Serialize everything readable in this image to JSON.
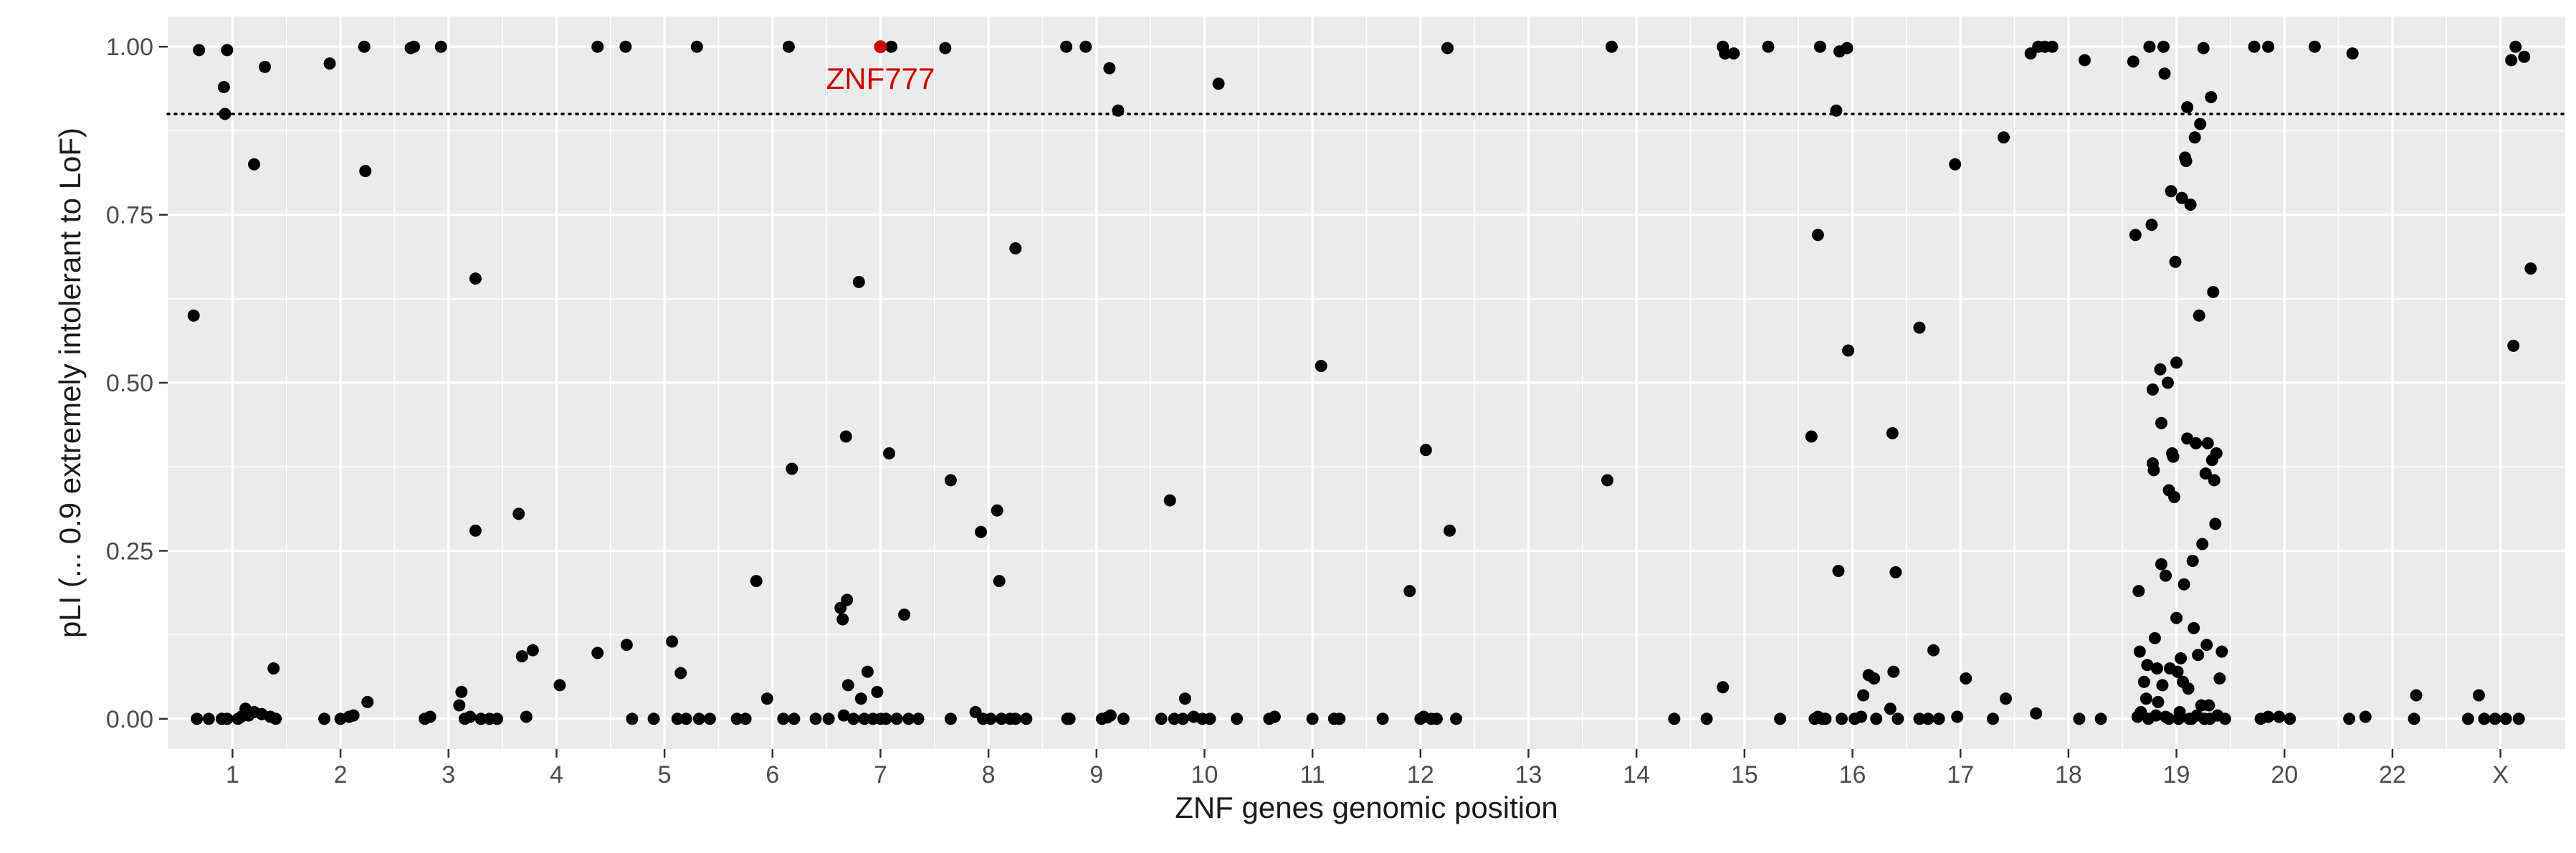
{
  "chart_data": {
    "type": "scatter",
    "title": "",
    "xlabel": "ZNF genes genomic position",
    "ylabel": "pLI (... 0.9 extremely intolerant to LoF)",
    "x_categories": [
      "1",
      "2",
      "3",
      "4",
      "5",
      "6",
      "7",
      "8",
      "9",
      "10",
      "11",
      "12",
      "13",
      "14",
      "15",
      "16",
      "17",
      "18",
      "19",
      "20",
      "22",
      "X"
    ],
    "yticks": [
      "0.00",
      "0.25",
      "0.50",
      "0.75",
      "1.00"
    ],
    "ylim": [
      -0.045,
      1.045
    ],
    "threshold": 0.9,
    "grid": true,
    "colors": {
      "panel": "#ebebeb",
      "grid": "#ffffff",
      "point": "#000000",
      "highlight": "#cc0000",
      "text": "#1a1a1a",
      "tick": "#333333"
    },
    "highlight": {
      "label": "ZNF777",
      "x": 7.0,
      "y": 1.0
    },
    "points": [
      [
        0.64,
        0.6
      ],
      [
        0.67,
        0.0
      ],
      [
        0.69,
        0.995
      ],
      [
        0.78,
        0.0
      ],
      [
        0.9,
        0.0
      ],
      [
        0.92,
        0.94
      ],
      [
        0.93,
        0.9
      ],
      [
        0.95,
        0.995
      ],
      [
        0.95,
        0.0
      ],
      [
        1.05,
        0.0
      ],
      [
        1.08,
        0.003
      ],
      [
        1.12,
        0.015
      ],
      [
        1.15,
        0.005
      ],
      [
        1.2,
        0.825
      ],
      [
        1.2,
        0.01
      ],
      [
        1.27,
        0.007
      ],
      [
        1.3,
        0.97
      ],
      [
        1.35,
        0.003
      ],
      [
        1.38,
        0.075
      ],
      [
        1.4,
        0.0
      ],
      [
        1.85,
        0.0
      ],
      [
        1.9,
        0.975
      ],
      [
        2.0,
        0.0
      ],
      [
        2.08,
        0.003
      ],
      [
        2.12,
        0.005
      ],
      [
        2.22,
        1.0
      ],
      [
        2.23,
        0.815
      ],
      [
        2.25,
        0.025
      ],
      [
        2.65,
        0.998
      ],
      [
        2.68,
        1.0
      ],
      [
        2.78,
        0.0
      ],
      [
        2.83,
        0.003
      ],
      [
        2.93,
        1.0
      ],
      [
        3.1,
        0.02
      ],
      [
        3.12,
        0.04
      ],
      [
        3.15,
        0.0
      ],
      [
        3.2,
        0.003
      ],
      [
        3.25,
        0.655
      ],
      [
        3.25,
        0.28
      ],
      [
        3.3,
        0.0
      ],
      [
        3.38,
        0.0
      ],
      [
        3.45,
        0.0
      ],
      [
        3.65,
        0.305
      ],
      [
        3.68,
        0.093
      ],
      [
        3.72,
        0.003
      ],
      [
        3.78,
        0.102
      ],
      [
        4.03,
        0.05
      ],
      [
        4.38,
        1.0
      ],
      [
        4.38,
        0.098
      ],
      [
        4.64,
        1.0
      ],
      [
        4.65,
        0.11
      ],
      [
        4.7,
        0.0
      ],
      [
        4.9,
        0.0
      ],
      [
        5.07,
        0.115
      ],
      [
        5.12,
        0.0
      ],
      [
        5.15,
        0.068
      ],
      [
        5.2,
        0.0
      ],
      [
        5.3,
        1.0
      ],
      [
        5.32,
        0.0
      ],
      [
        5.42,
        0.0
      ],
      [
        5.67,
        0.0
      ],
      [
        5.75,
        0.0
      ],
      [
        5.85,
        0.205
      ],
      [
        5.95,
        0.03
      ],
      [
        6.1,
        0.0
      ],
      [
        6.15,
        1.0
      ],
      [
        6.18,
        0.372
      ],
      [
        6.2,
        0.0
      ],
      [
        6.4,
        0.0
      ],
      [
        6.52,
        0.0
      ],
      [
        6.63,
        0.165
      ],
      [
        6.65,
        0.148
      ],
      [
        6.66,
        0.005
      ],
      [
        6.68,
        0.42
      ],
      [
        6.69,
        0.177
      ],
      [
        6.7,
        0.05
      ],
      [
        6.75,
        0.0
      ],
      [
        6.8,
        0.65
      ],
      [
        6.82,
        0.03
      ],
      [
        6.85,
        0.0
      ],
      [
        6.88,
        0.07
      ],
      [
        6.93,
        0.0
      ],
      [
        6.97,
        0.04
      ],
      [
        7.0,
        0.0
      ],
      [
        7.05,
        0.0
      ],
      [
        7.08,
        0.395
      ],
      [
        7.1,
        1.0
      ],
      [
        7.15,
        0.0
      ],
      [
        7.22,
        0.155
      ],
      [
        7.26,
        0.0
      ],
      [
        7.35,
        0.0
      ],
      [
        7.6,
        0.998
      ],
      [
        7.65,
        0.355
      ],
      [
        7.65,
        0.0
      ],
      [
        7.88,
        0.01
      ],
      [
        7.93,
        0.278
      ],
      [
        7.95,
        0.0
      ],
      [
        8.02,
        0.0
      ],
      [
        8.08,
        0.31
      ],
      [
        8.1,
        0.205
      ],
      [
        8.12,
        0.0
      ],
      [
        8.2,
        0.0
      ],
      [
        8.25,
        0.7
      ],
      [
        8.25,
        0.0
      ],
      [
        8.35,
        0.0
      ],
      [
        8.72,
        1.0
      ],
      [
        8.73,
        0.0
      ],
      [
        8.75,
        0.0
      ],
      [
        8.9,
        1.0
      ],
      [
        9.05,
        0.0
      ],
      [
        9.1,
        0.002
      ],
      [
        9.12,
        0.968
      ],
      [
        9.13,
        0.005
      ],
      [
        9.2,
        0.905
      ],
      [
        9.25,
        0.0
      ],
      [
        9.6,
        0.0
      ],
      [
        9.68,
        0.325
      ],
      [
        9.72,
        0.0
      ],
      [
        9.8,
        0.0
      ],
      [
        9.82,
        0.03
      ],
      [
        9.9,
        0.003
      ],
      [
        9.98,
        0.0
      ],
      [
        10.05,
        0.0
      ],
      [
        10.13,
        0.945
      ],
      [
        10.3,
        0.0
      ],
      [
        10.6,
        0.0
      ],
      [
        10.65,
        0.003
      ],
      [
        11.0,
        0.0
      ],
      [
        11.08,
        0.525
      ],
      [
        11.2,
        0.0
      ],
      [
        11.25,
        0.0
      ],
      [
        11.65,
        0.0
      ],
      [
        11.9,
        0.19
      ],
      [
        12.0,
        0.0
      ],
      [
        12.03,
        0.003
      ],
      [
        12.05,
        0.4
      ],
      [
        12.1,
        0.0
      ],
      [
        12.15,
        0.0
      ],
      [
        12.25,
        0.998
      ],
      [
        12.27,
        0.28
      ],
      [
        12.33,
        0.0
      ],
      [
        13.73,
        0.355
      ],
      [
        13.77,
        1.0
      ],
      [
        14.35,
        0.0
      ],
      [
        14.65,
        0.0
      ],
      [
        14.8,
        0.047
      ],
      [
        14.8,
        1.0
      ],
      [
        14.82,
        0.99
      ],
      [
        14.9,
        0.99
      ],
      [
        15.22,
        1.0
      ],
      [
        15.33,
        0.0
      ],
      [
        15.62,
        0.42
      ],
      [
        15.65,
        0.0
      ],
      [
        15.68,
        0.72
      ],
      [
        15.68,
        0.003
      ],
      [
        15.7,
        1.0
      ],
      [
        15.72,
        0.0
      ],
      [
        15.75,
        0.0
      ],
      [
        15.85,
        0.905
      ],
      [
        15.87,
        0.22
      ],
      [
        15.88,
        0.993
      ],
      [
        15.9,
        0.0
      ],
      [
        15.95,
        0.998
      ],
      [
        15.96,
        0.548
      ],
      [
        16.02,
        0.0
      ],
      [
        16.08,
        0.003
      ],
      [
        16.1,
        0.035
      ],
      [
        16.15,
        0.065
      ],
      [
        16.2,
        0.06
      ],
      [
        16.22,
        0.0
      ],
      [
        16.35,
        0.015
      ],
      [
        16.37,
        0.425
      ],
      [
        16.38,
        0.07
      ],
      [
        16.4,
        0.218
      ],
      [
        16.42,
        0.0
      ],
      [
        16.62,
        0.582
      ],
      [
        16.62,
        0.0
      ],
      [
        16.7,
        0.0
      ],
      [
        16.75,
        0.102
      ],
      [
        16.8,
        0.0
      ],
      [
        16.95,
        0.825
      ],
      [
        16.97,
        0.003
      ],
      [
        17.05,
        0.06
      ],
      [
        17.3,
        0.0
      ],
      [
        17.4,
        0.865
      ],
      [
        17.42,
        0.03
      ],
      [
        17.65,
        0.99
      ],
      [
        17.7,
        0.008
      ],
      [
        17.72,
        1.0
      ],
      [
        17.78,
        1.0
      ],
      [
        17.85,
        1.0
      ],
      [
        18.1,
        0.0
      ],
      [
        18.15,
        0.98
      ],
      [
        18.3,
        0.0
      ],
      [
        18.6,
        0.978
      ],
      [
        18.62,
        0.72
      ],
      [
        18.64,
        0.003
      ],
      [
        18.65,
        0.19
      ],
      [
        18.66,
        0.1
      ],
      [
        18.67,
        0.01
      ],
      [
        18.7,
        0.055
      ],
      [
        18.72,
        0.03
      ],
      [
        18.73,
        0.08
      ],
      [
        18.74,
        0.0
      ],
      [
        18.75,
        1.0
      ],
      [
        18.77,
        0.735
      ],
      [
        18.78,
        0.49
      ],
      [
        18.78,
        0.38
      ],
      [
        18.79,
        0.37
      ],
      [
        18.8,
        0.12
      ],
      [
        18.81,
        0.005
      ],
      [
        18.82,
        0.075
      ],
      [
        18.83,
        0.025
      ],
      [
        18.85,
        0.52
      ],
      [
        18.86,
        0.44
      ],
      [
        18.86,
        0.23
      ],
      [
        18.87,
        0.05
      ],
      [
        18.88,
        1.0
      ],
      [
        18.89,
        0.96
      ],
      [
        18.9,
        0.213
      ],
      [
        18.9,
        0.003
      ],
      [
        18.92,
        0.5
      ],
      [
        18.93,
        0.0
      ],
      [
        18.93,
        0.34
      ],
      [
        18.94,
        0.075
      ],
      [
        18.95,
        0.785
      ],
      [
        18.96,
        0.395
      ],
      [
        18.97,
        0.39
      ],
      [
        18.98,
        0.33
      ],
      [
        18.99,
        0.68
      ],
      [
        19.0,
        0.53
      ],
      [
        19.0,
        0.15
      ],
      [
        19.01,
        0.07
      ],
      [
        19.02,
        0.0
      ],
      [
        19.03,
        0.01
      ],
      [
        19.04,
        0.09
      ],
      [
        19.05,
        0.775
      ],
      [
        19.06,
        0.055
      ],
      [
        19.07,
        0.2
      ],
      [
        19.08,
        0.835
      ],
      [
        19.09,
        0.83
      ],
      [
        19.1,
        0.91
      ],
      [
        19.1,
        0.417
      ],
      [
        19.11,
        0.045
      ],
      [
        19.12,
        0.0
      ],
      [
        19.13,
        0.765
      ],
      [
        19.14,
        0.0
      ],
      [
        19.15,
        0.235
      ],
      [
        19.16,
        0.135
      ],
      [
        19.17,
        0.865
      ],
      [
        19.18,
        0.41
      ],
      [
        19.19,
        0.005
      ],
      [
        19.2,
        0.095
      ],
      [
        19.21,
        0.6
      ],
      [
        19.22,
        0.885
      ],
      [
        19.23,
        0.02
      ],
      [
        19.24,
        0.26
      ],
      [
        19.25,
        0.998
      ],
      [
        19.26,
        0.0
      ],
      [
        19.27,
        0.365
      ],
      [
        19.28,
        0.11
      ],
      [
        19.29,
        0.41
      ],
      [
        19.3,
        0.02
      ],
      [
        19.31,
        0.0
      ],
      [
        19.32,
        0.925
      ],
      [
        19.33,
        0.385
      ],
      [
        19.34,
        0.635
      ],
      [
        19.35,
        0.355
      ],
      [
        19.36,
        0.29
      ],
      [
        19.37,
        0.395
      ],
      [
        19.38,
        0.005
      ],
      [
        19.4,
        0.06
      ],
      [
        19.42,
        0.1
      ],
      [
        19.45,
        0.0
      ],
      [
        19.72,
        1.0
      ],
      [
        19.78,
        0.0
      ],
      [
        19.85,
        1.0
      ],
      [
        19.85,
        0.003
      ],
      [
        19.95,
        0.003
      ],
      [
        20.05,
        0.0
      ],
      [
        20.28,
        1.0
      ],
      [
        20.6,
        0.0
      ],
      [
        20.63,
        0.99
      ],
      [
        20.75,
        0.003
      ],
      [
        21.2,
        0.0
      ],
      [
        21.22,
        0.035
      ],
      [
        21.7,
        0.0
      ],
      [
        21.8,
        0.035
      ],
      [
        21.85,
        0.0
      ],
      [
        21.95,
        0.0
      ],
      [
        22.05,
        0.0
      ],
      [
        22.1,
        0.98
      ],
      [
        22.12,
        0.555
      ],
      [
        22.14,
        1.0
      ],
      [
        22.17,
        0.0
      ],
      [
        22.22,
        0.985
      ],
      [
        22.28,
        0.67
      ]
    ]
  }
}
